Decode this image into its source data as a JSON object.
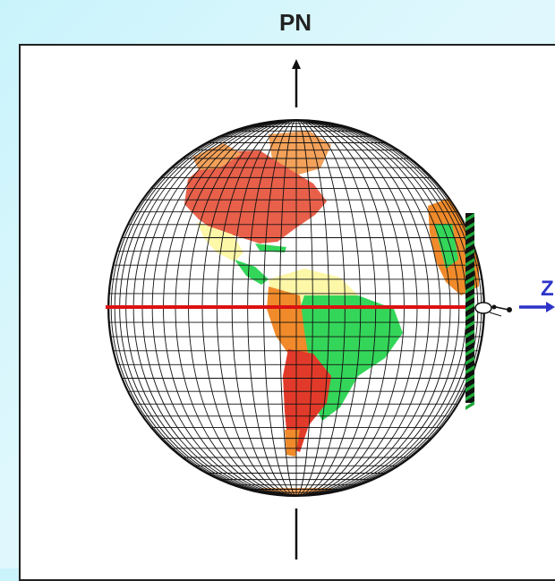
{
  "diagram": {
    "title": "PN",
    "axis_label": "Z"
  },
  "colors": {
    "equator": "#dd1111",
    "axis_arrow": "#2d33c8",
    "grid": "#111111",
    "north_america": "#e8604a",
    "greenland": "#f4a15a",
    "mexico": "#fdf7a8",
    "central_america": "#34d65a",
    "south_america_brazil": "#34d65a",
    "south_america_andes": "#f08a2a",
    "argentina": "#e23a2a",
    "africa": "#f08a2a",
    "screen_stripe_a": "#1fa83a",
    "screen_stripe_b": "#111111"
  }
}
